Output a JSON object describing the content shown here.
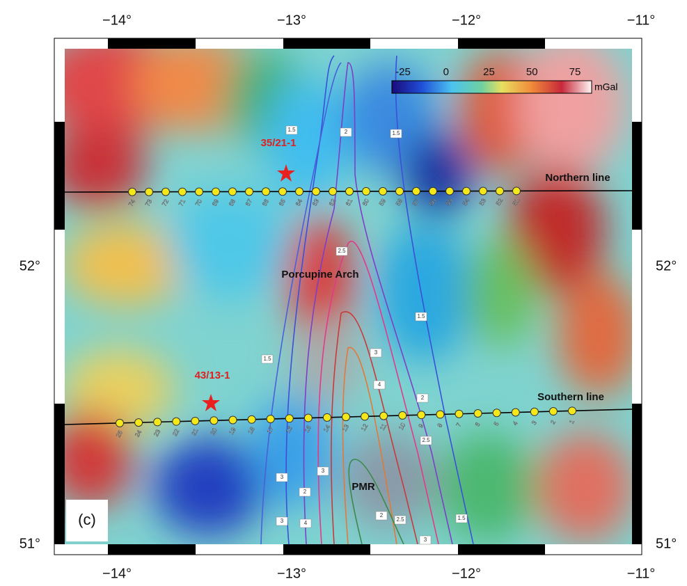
{
  "map": {
    "panel_label": "(c)",
    "lon_ticks": [
      "−14°",
      "−13°",
      "−12°",
      "−11°"
    ],
    "lat_ticks": [
      "52°",
      "51°"
    ],
    "colorbar": {
      "ticks": [
        -25,
        0,
        25,
        50,
        75
      ],
      "unit": "mGal"
    },
    "wells": [
      "35/21-1",
      "43/13-1"
    ],
    "lines": [
      "Northern line",
      "Southern line"
    ],
    "features": [
      "Porcupine Arch",
      "PMR"
    ],
    "northern_stations": [
      "74",
      "73",
      "72",
      "71",
      "70",
      "69",
      "68",
      "67",
      "66",
      "65",
      "64",
      "63",
      "62",
      "61",
      "60",
      "59",
      "58",
      "57",
      "56",
      "55",
      "54",
      "53",
      "52",
      "51"
    ],
    "southern_stations": [
      "25",
      "24",
      "23",
      "22",
      "21",
      "20",
      "19",
      "18",
      "17",
      "16",
      "15",
      "14",
      "13",
      "12",
      "11",
      "10",
      "9",
      "8",
      "7",
      "6",
      "5",
      "4",
      "3",
      "2",
      "1"
    ],
    "contour_labels": [
      "1.5",
      "2",
      "1.5",
      "2.5",
      "1.5",
      "1.5",
      "3",
      "4",
      "2",
      "2.5",
      "3",
      "3",
      "2",
      "2",
      "2.5",
      "3",
      "3",
      "1.5",
      "4"
    ]
  }
}
